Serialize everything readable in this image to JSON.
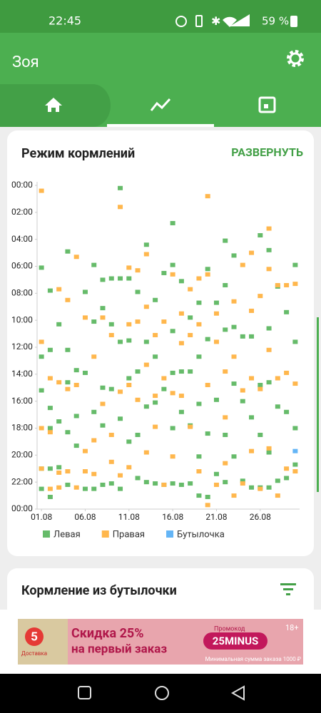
{
  "status_bar": {
    "time": "22:45",
    "battery": "59 %"
  },
  "app_bar": {
    "title": "Зоя"
  },
  "card": {
    "title": "Режим кормлений",
    "action": "РАЗВЕРНУТЬ"
  },
  "chart_data": {
    "type": "scatter",
    "y_inverted": true,
    "xlim": [
      0.5,
      30.5
    ],
    "xticks": [
      {
        "value": 1,
        "label": "01.08"
      },
      {
        "value": 6,
        "label": "06.08"
      },
      {
        "value": 11,
        "label": "11.08"
      },
      {
        "value": 16,
        "label": "16.08"
      },
      {
        "value": 21,
        "label": "21.08"
      },
      {
        "value": 26,
        "label": "26.08"
      }
    ],
    "ylim": [
      0,
      24
    ],
    "yticks": [
      {
        "value": 0,
        "label": "00:00"
      },
      {
        "value": 2,
        "label": "02:00"
      },
      {
        "value": 4,
        "label": "04:00"
      },
      {
        "value": 6,
        "label": "06:00"
      },
      {
        "value": 8,
        "label": "08:00"
      },
      {
        "value": 10,
        "label": "10:00"
      },
      {
        "value": 12,
        "label": "12:00"
      },
      {
        "value": 14,
        "label": "14:00"
      },
      {
        "value": 16,
        "label": "16:00"
      },
      {
        "value": 18,
        "label": "18:00"
      },
      {
        "value": 20,
        "label": "20:00"
      },
      {
        "value": 22,
        "label": "22:00"
      },
      {
        "value": 24,
        "label": "00:00"
      }
    ],
    "series": [
      {
        "name": "Левая",
        "color": "#66bb6a",
        "x": [
          1,
          1,
          1,
          1,
          1,
          2,
          2,
          2,
          2,
          2,
          2,
          3,
          3,
          3,
          4,
          4,
          4,
          4,
          4,
          5,
          5,
          5,
          6,
          6,
          6,
          7,
          7,
          7,
          7,
          8,
          8,
          8,
          8,
          8,
          9,
          9,
          9,
          9,
          10,
          10,
          10,
          10,
          10,
          11,
          11,
          11,
          11,
          12,
          12,
          12,
          12,
          13,
          13,
          13,
          13,
          14,
          14,
          14,
          14,
          15,
          15,
          15,
          16,
          16,
          16,
          16,
          16,
          16,
          17,
          17,
          17,
          17,
          18,
          18,
          18,
          18,
          19,
          19,
          19,
          19,
          19,
          20,
          20,
          20,
          20,
          21,
          21,
          21,
          22,
          22,
          22,
          22,
          22,
          23,
          23,
          23,
          23,
          24,
          24,
          24,
          25,
          25,
          25,
          26,
          26,
          26,
          26,
          27,
          27,
          27,
          27,
          27,
          28,
          28,
          28,
          29,
          29,
          29,
          30,
          30,
          30,
          30
        ],
        "values": [
          6.1,
          21.0,
          12.7,
          15.2,
          22.5,
          7.8,
          12.2,
          16.5,
          18.0,
          21.0,
          23.1,
          10.3,
          17.5,
          20.9,
          4.9,
          12.2,
          14.6,
          18.3,
          22.2,
          13.7,
          17.1,
          19.3,
          7.9,
          13.9,
          22.5,
          5.9,
          10.1,
          16.8,
          22.5,
          7.0,
          9.1,
          15.0,
          17.8,
          22.2,
          6.9,
          10.3,
          15.1,
          22.1,
          0.2,
          6.9,
          11.6,
          17.3,
          22.5,
          6.9,
          11.5,
          14.3,
          19.0,
          7.9,
          13.8,
          18.5,
          21.7,
          4.4,
          11.6,
          16.4,
          22.0,
          8.5,
          12.7,
          16.1,
          22.1,
          6.5,
          15.1,
          22.2,
          2.8,
          5.9,
          10.8,
          13.9,
          18.0,
          22.1,
          7.1,
          13.8,
          16.8,
          22.2,
          9.8,
          13.8,
          17.8,
          22.1,
          8.7,
          12.7,
          16.2,
          20.1,
          23.0,
          6.2,
          11.4,
          18.4,
          23.1,
          8.7,
          15.9,
          21.4,
          4.1,
          7.4,
          10.7,
          18.5,
          22.0,
          5.2,
          10.5,
          14.7,
          20.1,
          11.2,
          16.0,
          21.9,
          11.2,
          17.2,
          22.4,
          3.7,
          14.8,
          18.5,
          22.4,
          4.8,
          10.6,
          14.6,
          19.8,
          22.4,
          7.5,
          16.4,
          21.9,
          9.4,
          16.8,
          21.7,
          5.9,
          11.6,
          18.0,
          20.7
        ]
      },
      {
        "name": "Правая",
        "color": "#ffb74d",
        "x": [
          1,
          1,
          1,
          1,
          2,
          2,
          2,
          3,
          3,
          3,
          3,
          4,
          4,
          4,
          5,
          5,
          5,
          6,
          6,
          6,
          7,
          7,
          7,
          8,
          8,
          9,
          9,
          9,
          10,
          10,
          10,
          11,
          11,
          11,
          11,
          12,
          12,
          12,
          13,
          13,
          13,
          13,
          14,
          14,
          14,
          15,
          15,
          15,
          16,
          16,
          16,
          17,
          17,
          17,
          18,
          18,
          18,
          19,
          19,
          19,
          20,
          20,
          20,
          20,
          21,
          21,
          21,
          22,
          22,
          22,
          23,
          23,
          23,
          24,
          24,
          24,
          25,
          25,
          25,
          25,
          26,
          26,
          26,
          27,
          27,
          27,
          27,
          28,
          28,
          28,
          29,
          29,
          29,
          30,
          30,
          30
        ],
        "values": [
          0.4,
          11.6,
          18.0,
          21.0,
          14.3,
          18.3,
          22.5,
          7.7,
          14.6,
          21.3,
          22.4,
          8.5,
          15.1,
          21.2,
          5.3,
          14.8,
          22.4,
          9.8,
          19.7,
          21.2,
          12.7,
          18.9,
          21.4,
          9.8,
          16.2,
          11.1,
          18.5,
          20.5,
          1.6,
          15.3,
          21.5,
          6.1,
          10.3,
          14.8,
          20.9,
          6.3,
          10.1,
          15.9,
          5.1,
          9.0,
          13.3,
          19.8,
          11.1,
          15.6,
          17.9,
          10.1,
          14.3,
          22.2,
          6.6,
          15.4,
          20.1,
          9.5,
          11.7,
          15.6,
          7.7,
          11.1,
          17.9,
          6.9,
          10.3,
          21.2,
          0.8,
          6.6,
          14.8,
          23.7,
          9.5,
          11.6,
          22.2,
          13.8,
          17.2,
          20.6,
          8.6,
          12.7,
          23.0,
          5.9,
          15.2,
          22.1,
          5.0,
          9.3,
          14.3,
          19.7,
          8.2,
          15.1,
          22.5,
          3.2,
          6.2,
          12.2,
          19.5,
          7.4,
          14.3,
          23.0,
          7.4,
          13.9,
          21.0,
          7.3,
          14.7,
          21.2
        ]
      },
      {
        "name": "Бутылочка",
        "color": "#64b5f6",
        "x": [
          30
        ],
        "values": [
          19.7
        ]
      }
    ]
  },
  "second_card": {
    "title": "Кормление из бутылочки"
  },
  "ad": {
    "brand_number": "5",
    "brand": "Доставка",
    "headline1": "Скидка 25%",
    "headline2": "на первый заказ",
    "promo_label": "Промокод",
    "promo_code": "25MINUS",
    "age": "18+",
    "min_order": "Минимальная сумма заказа 1000 ₽"
  }
}
